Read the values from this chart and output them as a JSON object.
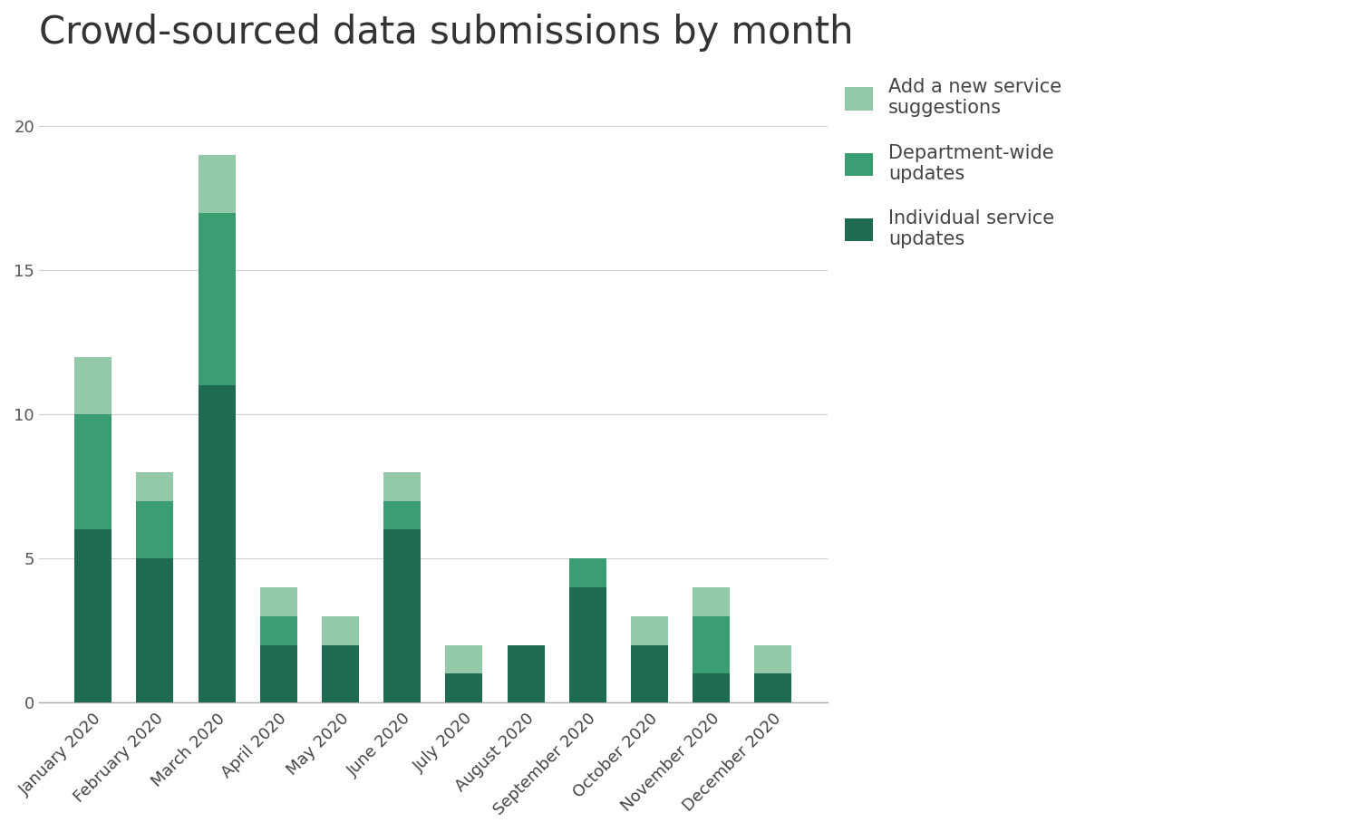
{
  "title": "Crowd-sourced data submissions by month",
  "months": [
    "January 2020",
    "February 2020",
    "March 2020",
    "April 2020",
    "May 2020",
    "June 2020",
    "July 2020",
    "August 2020",
    "September 2020",
    "October 2020",
    "November 2020",
    "December 2020"
  ],
  "individual_service_updates": [
    6,
    5,
    11,
    2,
    2,
    6,
    1,
    2,
    4,
    2,
    1,
    1
  ],
  "department_wide_updates": [
    4,
    2,
    6,
    1,
    0,
    1,
    0,
    0,
    1,
    0,
    2,
    0
  ],
  "add_new_service_suggestions": [
    2,
    1,
    2,
    1,
    1,
    1,
    1,
    0,
    0,
    1,
    1,
    1
  ],
  "color_individual": "#1e6b52",
  "color_department": "#3a9e72",
  "color_add_new": "#93c9a8",
  "background_color": "#ffffff",
  "ylim": [
    0,
    22
  ],
  "yticks": [
    0,
    5,
    10,
    15,
    20
  ],
  "legend_labels": [
    "Add a new service\nsuggestions",
    "Department-wide\nupdates",
    "Individual service\nupdates"
  ],
  "title_fontsize": 30,
  "tick_fontsize": 13,
  "legend_fontsize": 15,
  "bar_width": 0.6
}
